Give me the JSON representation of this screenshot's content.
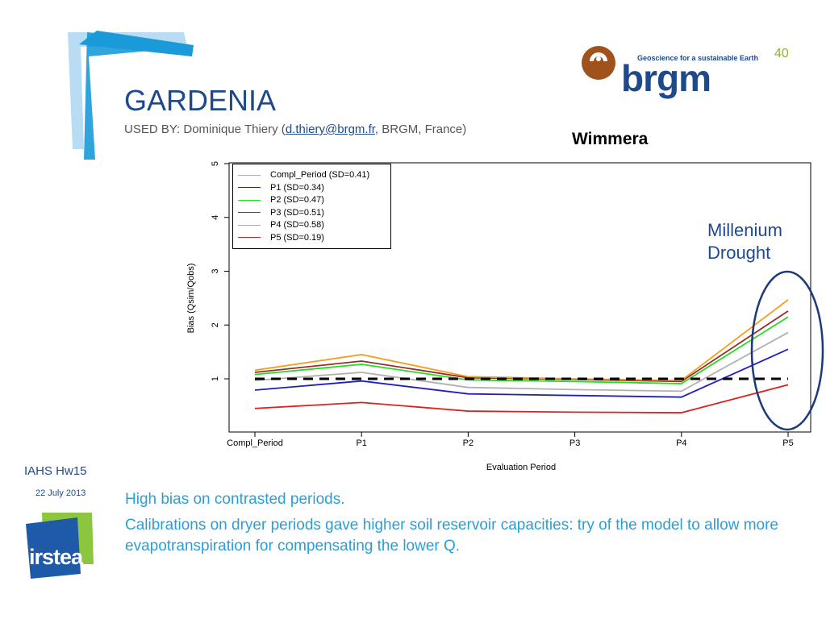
{
  "slide": {
    "title": "GARDENIA",
    "subtitle_prefix": "USED BY: Dominique Thiery (",
    "subtitle_link": "d.thiery@brgm.fr",
    "subtitle_suffix": ", BRGM, France)",
    "page_number": "40",
    "chart_heading": "Wimmera"
  },
  "logos": {
    "brgm_tagline": "Geoscience for a sustainable Earth",
    "brgm_word": "brgm",
    "irstea_word": "irstea"
  },
  "annotation": {
    "line1": "Millenium",
    "line2": "Drought"
  },
  "footer": {
    "conference": "IAHS Hw15",
    "date": "22 July 2013"
  },
  "bullets": [
    "High bias on contrasted periods.",
    "Calibrations on dryer periods gave higher soil reservoir capacities: try of the model to allow more evapotranspiration for compensating the lower Q."
  ],
  "colors": {
    "brand_blue": "#1e4a8c",
    "bullet_blue": "#2a9fd6",
    "page_green": "#8bb33a"
  },
  "chart_data": {
    "type": "line",
    "xlabel": "Evaluation Period",
    "ylabel": "Bias (Qsim/Qobs)",
    "categories": [
      "Compl_Period",
      "P1",
      "P2",
      "P3",
      "P4",
      "P5"
    ],
    "ylim": [
      0.2,
      5
    ],
    "yticks": [
      1,
      2,
      3,
      4,
      5
    ],
    "reference_line": 1,
    "legend_position": "top-left",
    "series": [
      {
        "name": "Compl_Period (SD=0.41)",
        "color": "#b0b0b0",
        "values": [
          0.97,
          1.12,
          0.84,
          0.8,
          0.77,
          1.86
        ]
      },
      {
        "name": "P1 (SD=0.34)",
        "color": "#1f1fc0",
        "values": [
          0.79,
          0.96,
          0.72,
          0.69,
          0.66,
          1.55
        ]
      },
      {
        "name": "P2 (SD=0.47)",
        "color": "#22dd22",
        "values": [
          1.08,
          1.27,
          0.98,
          0.95,
          0.91,
          2.15
        ]
      },
      {
        "name": "P3 (SD=0.51)",
        "color": "#9b2a2a",
        "values": [
          1.12,
          1.33,
          1.02,
          0.99,
          0.95,
          2.26
        ]
      },
      {
        "name": "P4 (SD=0.58)",
        "color": "#f0a020",
        "values": [
          1.16,
          1.45,
          1.04,
          1.0,
          0.97,
          2.47
        ]
      },
      {
        "name": "P5 (SD=0.19)",
        "color": "#e02020",
        "values": [
          0.45,
          0.56,
          0.4,
          0.38,
          0.37,
          0.89
        ]
      }
    ]
  }
}
